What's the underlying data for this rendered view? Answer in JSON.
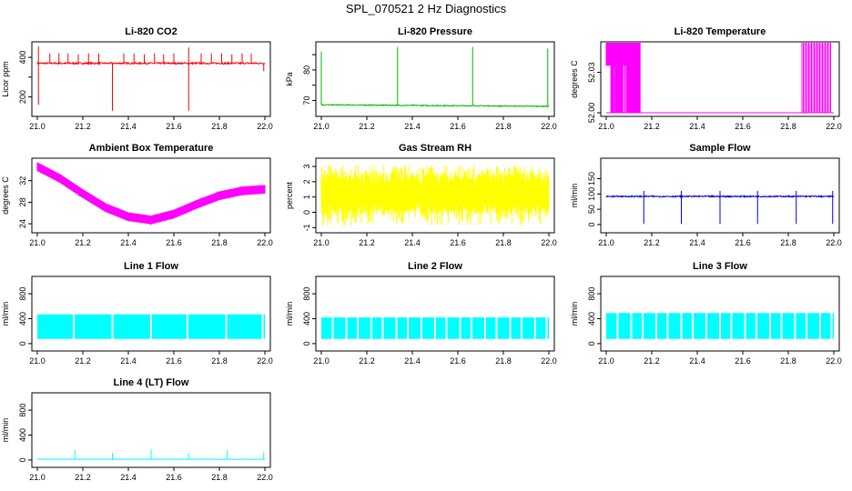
{
  "title": "SPL_070521  2 Hz Diagnostics",
  "x_ticks": [
    "21.0",
    "21.2",
    "21.4",
    "21.6",
    "21.8",
    "22.0"
  ],
  "chart_data": [
    {
      "id": "co2",
      "type": "line",
      "title": "Li-820 CO2",
      "ylabel": "Licor ppm",
      "color": "#ff0000",
      "xlim": [
        21.0,
        22.0
      ],
      "ylim": [
        120,
        460
      ],
      "yticks": [
        200,
        300,
        400
      ],
      "ytick_labels": [
        "200",
        "",
        "400"
      ],
      "baseline": 370,
      "noise": 4,
      "spikes": [
        {
          "x": 21.005,
          "y": 455
        },
        {
          "x": 21.005,
          "y": 160
        },
        {
          "x": 21.055,
          "y": 420
        },
        {
          "x": 21.095,
          "y": 420
        },
        {
          "x": 21.135,
          "y": 420
        },
        {
          "x": 21.18,
          "y": 415
        },
        {
          "x": 21.225,
          "y": 420
        },
        {
          "x": 21.27,
          "y": 420
        },
        {
          "x": 21.33,
          "y": 130
        },
        {
          "x": 21.38,
          "y": 420
        },
        {
          "x": 21.425,
          "y": 420
        },
        {
          "x": 21.47,
          "y": 415
        },
        {
          "x": 21.515,
          "y": 420
        },
        {
          "x": 21.555,
          "y": 415
        },
        {
          "x": 21.6,
          "y": 420
        },
        {
          "x": 21.665,
          "y": 450
        },
        {
          "x": 21.665,
          "y": 130
        },
        {
          "x": 21.72,
          "y": 420
        },
        {
          "x": 21.765,
          "y": 420
        },
        {
          "x": 21.81,
          "y": 420
        },
        {
          "x": 21.855,
          "y": 415
        },
        {
          "x": 21.9,
          "y": 420
        },
        {
          "x": 21.94,
          "y": 420
        },
        {
          "x": 21.995,
          "y": 330
        }
      ]
    },
    {
      "id": "pressure",
      "type": "line",
      "title": "Li-820 Pressure",
      "ylabel": "kPa",
      "color": "#00bb00",
      "xlim": [
        21.0,
        22.0
      ],
      "ylim": [
        66,
        88
      ],
      "yticks": [
        70,
        75,
        80,
        85
      ],
      "ytick_labels": [
        "70",
        "",
        "80",
        ""
      ],
      "baseline": [
        [
          21.0,
          68.6
        ],
        [
          22.0,
          68.1
        ]
      ],
      "noise": 0.15,
      "spikes": [
        {
          "x": 21.0,
          "y": 86
        },
        {
          "x": 21.335,
          "y": 87.5
        },
        {
          "x": 21.665,
          "y": 87.5
        },
        {
          "x": 21.995,
          "y": 87
        }
      ]
    },
    {
      "id": "temperature",
      "type": "line",
      "title": "Li-820 Temperature",
      "ylabel": "degrees C",
      "color": "#ff00ff",
      "xlim": [
        21.0,
        22.0
      ],
      "ylim": [
        52.0,
        52.05
      ],
      "yticks": [
        52.0,
        52.03
      ],
      "ytick_labels": [
        "52.00",
        "52.03"
      ],
      "levels": [
        52.0,
        52.06
      ],
      "dense_ranges": [
        [
          21.0,
          21.15
        ],
        [
          21.86,
          21.99
        ]
      ]
    },
    {
      "id": "ambient",
      "type": "line",
      "title": "Ambient Box Temperature",
      "ylabel": "degrees C",
      "color": "#ff00ff",
      "xlim": [
        21.0,
        22.0
      ],
      "ylim": [
        23,
        35.5
      ],
      "yticks": [
        24,
        28,
        32
      ],
      "ytick_labels": [
        "24",
        "28",
        "32"
      ],
      "curve": [
        [
          21.0,
          34.6
        ],
        [
          21.1,
          32.4
        ],
        [
          21.2,
          29.6
        ],
        [
          21.3,
          27.0
        ],
        [
          21.4,
          25.3
        ],
        [
          21.5,
          24.7
        ],
        [
          21.6,
          25.8
        ],
        [
          21.7,
          27.6
        ],
        [
          21.8,
          29.2
        ],
        [
          21.9,
          30.1
        ],
        [
          22.0,
          30.4
        ]
      ],
      "noise": 0.8
    },
    {
      "id": "rh",
      "type": "line",
      "title": "Gas Stream RH",
      "ylabel": "percent",
      "color": "#ffff00",
      "xlim": [
        21.0,
        22.0
      ],
      "ylim": [
        -1.1,
        3.3
      ],
      "yticks": [
        -1,
        0,
        1,
        2,
        3
      ],
      "ytick_labels": [
        "-1",
        "0",
        "1",
        "2",
        "3"
      ],
      "band": [
        -0.9,
        3.1
      ],
      "core": [
        0.6,
        1.8
      ]
    },
    {
      "id": "sample",
      "type": "line",
      "title": "Sample Flow",
      "ylabel": "ml/min",
      "color": "#0000dd",
      "xlim": [
        21.0,
        22.0
      ],
      "ylim": [
        -15,
        205
      ],
      "yticks": [
        0,
        50,
        100,
        150
      ],
      "ytick_labels": [
        "0",
        "50",
        "100",
        "150"
      ],
      "baseline": 92,
      "noise": 2,
      "dips": [
        21.165,
        21.33,
        21.5,
        21.665,
        21.835,
        21.995
      ],
      "dip_low": 2,
      "dip_high": 110
    },
    {
      "id": "line1",
      "type": "line",
      "title": "Line 1 Flow",
      "ylabel": "ml/min",
      "color": "#00ffff",
      "xlim": [
        21.0,
        22.0
      ],
      "ylim": [
        -60,
        1020
      ],
      "yticks": [
        0,
        400,
        800
      ],
      "ytick_labels": [
        "0",
        "400",
        "800"
      ],
      "band": [
        75,
        470
      ],
      "gaps": [
        21.16,
        21.33,
        21.5,
        21.66,
        21.83,
        21.99
      ]
    },
    {
      "id": "line2",
      "type": "line",
      "title": "Line 2 Flow",
      "ylabel": "ml/min",
      "color": "#00ffff",
      "xlim": [
        21.0,
        22.0
      ],
      "ylim": [
        -60,
        1020
      ],
      "yticks": [
        0,
        400,
        800
      ],
      "ytick_labels": [
        "0",
        "400",
        "800"
      ],
      "band": [
        75,
        420
      ],
      "gaps": [
        21.05,
        21.11,
        21.16,
        21.22,
        21.27,
        21.33,
        21.38,
        21.44,
        21.5,
        21.55,
        21.61,
        21.66,
        21.72,
        21.77,
        21.83,
        21.88,
        21.94,
        21.99
      ]
    },
    {
      "id": "line3",
      "type": "line",
      "title": "Line 3 Flow",
      "ylabel": "ml/min",
      "color": "#00ffff",
      "xlim": [
        21.0,
        22.0
      ],
      "ylim": [
        -60,
        1020
      ],
      "yticks": [
        0,
        400,
        800
      ],
      "ytick_labels": [
        "0",
        "400",
        "800"
      ],
      "band": [
        75,
        490
      ],
      "gaps": [
        21.05,
        21.11,
        21.16,
        21.22,
        21.27,
        21.33,
        21.38,
        21.44,
        21.5,
        21.55,
        21.61,
        21.66,
        21.72,
        21.77,
        21.83,
        21.88,
        21.94,
        21.99
      ]
    },
    {
      "id": "line4",
      "type": "line",
      "title": "Line 4 (LT) Flow",
      "ylabel": "ml/min",
      "color": "#00ffff",
      "xlim": [
        21.0,
        22.0
      ],
      "ylim": [
        -60,
        1020
      ],
      "yticks": [
        0,
        400,
        800
      ],
      "ytick_labels": [
        "0",
        "400",
        "800"
      ],
      "baseline": 12,
      "noise": 3,
      "spikes": [
        {
          "x": 21.165,
          "y": 160
        },
        {
          "x": 21.33,
          "y": 110
        },
        {
          "x": 21.5,
          "y": 170
        },
        {
          "x": 21.665,
          "y": 110
        },
        {
          "x": 21.835,
          "y": 160
        },
        {
          "x": 21.995,
          "y": 120
        }
      ]
    }
  ]
}
